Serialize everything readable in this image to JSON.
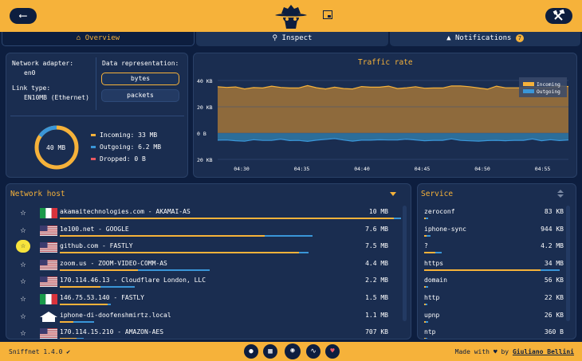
{
  "colors": {
    "accent": "#f6b23a",
    "background": "#0d1e3f",
    "panel": "#1a2d50",
    "incoming": "#f6b23a",
    "outgoing": "#3a96d8",
    "dropped": "#e85860"
  },
  "tabs": [
    {
      "label": "Overview",
      "icon": "home-icon"
    },
    {
      "label": "Inspect",
      "icon": "search-icon"
    },
    {
      "label": "Notifications",
      "icon": "bell-icon",
      "badge": "7"
    }
  ],
  "settings": {
    "adapter_label": "Network adapter:",
    "adapter_value": "en0",
    "link_label": "Link type:",
    "link_value": "EN10MB (Ethernet)",
    "repr_label": "Data representation:",
    "repr_options": [
      "bytes",
      "packets"
    ],
    "repr_selected": "bytes"
  },
  "totals": {
    "donut_label": "40 MB",
    "incoming": "Incoming: 33 MB",
    "outgoing": "Outgoing: 6.2 MB",
    "dropped": "Dropped: 0 B"
  },
  "traffic": {
    "title": "Traffic rate",
    "legend": [
      "Incoming",
      "Outgoing"
    ],
    "chart_data": {
      "type": "area",
      "title": "Traffic rate",
      "x_ticks": [
        "04:30",
        "04:35",
        "04:40",
        "04:45",
        "04:50",
        "04:55"
      ],
      "y_ticks": [
        "40 KB",
        "20 KB",
        "0 B",
        "20 KB"
      ],
      "ylim": [
        -20,
        40
      ],
      "series": [
        {
          "name": "Incoming",
          "values": [
            35.2,
            34.7,
            35.1,
            33.6,
            34.6,
            34.3,
            35.7,
            34.7,
            34.3,
            34.3,
            36.1,
            34.5,
            33.6,
            34.9,
            33.9,
            33.6,
            35.4,
            34.9,
            34.9,
            35.7,
            33.9,
            34.4,
            35.3,
            34.1,
            34.3,
            34.3,
            35.9,
            35.8,
            35.3,
            34.3,
            33.4,
            35.7,
            34.4,
            34.4,
            34.5,
            35.3,
            34.4,
            34.8,
            35.9,
            35.4
          ]
        },
        {
          "name": "Outgoing",
          "values": [
            -5.4,
            -5.3,
            -5.8,
            -6.2,
            -5.0,
            -5.6,
            -5.6,
            -4.6,
            -5.7,
            -5.6,
            -6.3,
            -5.4,
            -4.8,
            -4.2,
            -5.3,
            -6.1,
            -5.4,
            -5.4,
            -5.1,
            -5.3,
            -5.2,
            -4.6,
            -5.2,
            -5.8,
            -5.5,
            -5.5,
            -4.4,
            -5.6,
            -5.9,
            -6.1,
            -5.7,
            -5.5,
            -5.8,
            -5.5,
            -5.5,
            -4.5,
            -5.8,
            -5.0,
            -5.7,
            -5.2
          ]
        }
      ]
    }
  },
  "hosts": {
    "title": "Network host",
    "rows": [
      {
        "name": "akamaitechnologies.com - AKAMAI-AS",
        "value": "10 MB",
        "flag": "it",
        "fav": false,
        "in_pct": 98,
        "out_pct": 2
      },
      {
        "name": "1e100.net - GOOGLE",
        "value": "7.6 MB",
        "flag": "us",
        "fav": false,
        "in_pct": 60,
        "out_pct": 14
      },
      {
        "name": "github.com - FASTLY",
        "value": "7.5 MB",
        "flag": "us",
        "fav": true,
        "in_pct": 70,
        "out_pct": 3
      },
      {
        "name": "zoom.us - ZOOM-VIDEO-COMM-AS",
        "value": "4.4 MB",
        "flag": "us",
        "fav": false,
        "in_pct": 23,
        "out_pct": 21
      },
      {
        "name": "170.114.46.13 - Cloudflare London, LLC",
        "value": "2.2 MB",
        "flag": "us",
        "fav": false,
        "in_pct": 12,
        "out_pct": 10
      },
      {
        "name": "146.75.53.140 - FASTLY",
        "value": "1.5 MB",
        "flag": "it",
        "fav": false,
        "in_pct": 14,
        "out_pct": 1
      },
      {
        "name": "iphone-di-doofenshmirtz.local",
        "value": "1.1 MB",
        "flag": "home",
        "fav": false,
        "in_pct": 4,
        "out_pct": 6
      },
      {
        "name": "170.114.15.210 - AMAZON-AES",
        "value": "707 KB",
        "flag": "us",
        "fav": false,
        "in_pct": 5,
        "out_pct": 2
      }
    ]
  },
  "services": {
    "title": "Service",
    "rows": [
      {
        "name": "zeroconf",
        "value": "83 KB",
        "in_pct": 1,
        "out_pct": 2
      },
      {
        "name": "iphone-sync",
        "value": "944 KB",
        "in_pct": 2,
        "out_pct": 3
      },
      {
        "name": "?",
        "value": "4.2 MB",
        "in_pct": 8,
        "out_pct": 5
      },
      {
        "name": "https",
        "value": "34 MB",
        "in_pct": 86,
        "out_pct": 14
      },
      {
        "name": "domain",
        "value": "56 KB",
        "in_pct": 1,
        "out_pct": 2
      },
      {
        "name": "http",
        "value": "22 KB",
        "in_pct": 1,
        "out_pct": 1
      },
      {
        "name": "upnp",
        "value": "26 KB",
        "in_pct": 1,
        "out_pct": 2
      },
      {
        "name": "ntp",
        "value": "360 B",
        "in_pct": 1,
        "out_pct": 1
      }
    ]
  },
  "footer": {
    "version": "Sniffnet 1.4.0",
    "made_with": "Made with",
    "by": "by",
    "author": "Giuliano Bellini"
  }
}
